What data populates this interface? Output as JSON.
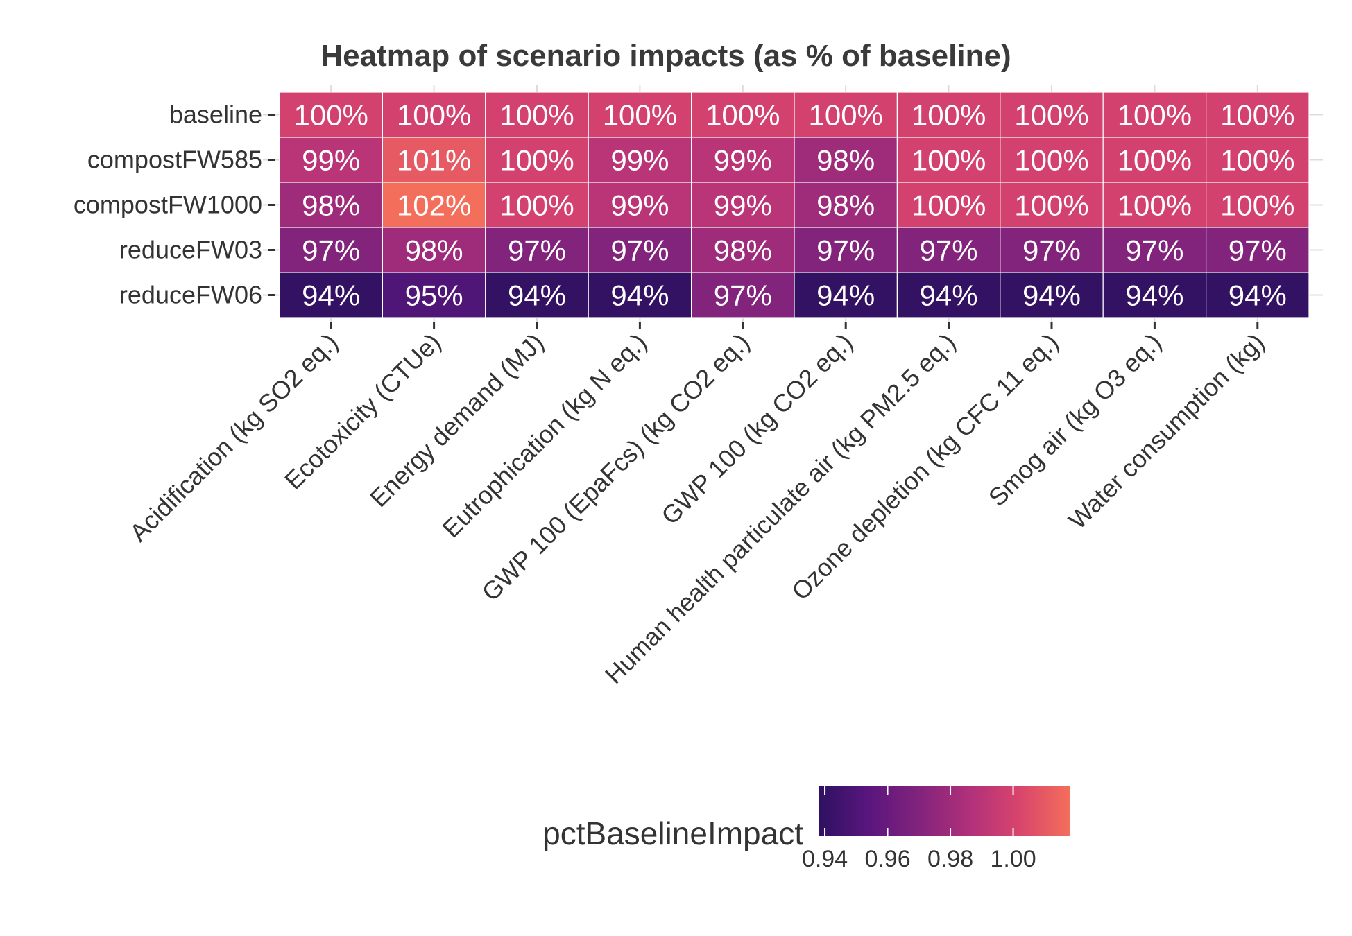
{
  "chart_data": {
    "type": "heatmap",
    "title": "Heatmap of scenario impacts (as % of baseline)",
    "xlabel": "",
    "ylabel": "",
    "x_categories": [
      "Acidification (kg SO2 eq.)",
      "Ecotoxicity (CTUe)",
      "Energy demand (MJ)",
      "Eutrophication (kg N eq.)",
      "GWP 100 (EpaFcs) (kg CO2 eq.)",
      "GWP 100 (kg CO2 eq.)",
      "Human health particulate air (kg PM2.5 eq.)",
      "Ozone depletion (kg CFC 11 eq.)",
      "Smog air (kg O3 eq.)",
      "Water consumption (kg)"
    ],
    "y_categories": [
      "baseline",
      "compostFW585",
      "compostFW1000",
      "reduceFW03",
      "reduceFW06"
    ],
    "values": [
      [
        1.0,
        1.0,
        1.0,
        1.0,
        1.0,
        1.0,
        1.0,
        1.0,
        1.0,
        1.0
      ],
      [
        0.99,
        1.01,
        1.0,
        0.99,
        0.99,
        0.98,
        1.0,
        1.0,
        1.0,
        1.0
      ],
      [
        0.98,
        1.02,
        1.0,
        0.99,
        0.99,
        0.98,
        1.0,
        1.0,
        1.0,
        1.0
      ],
      [
        0.97,
        0.98,
        0.97,
        0.97,
        0.98,
        0.97,
        0.97,
        0.97,
        0.97,
        0.97
      ],
      [
        0.94,
        0.95,
        0.94,
        0.94,
        0.97,
        0.94,
        0.94,
        0.94,
        0.94,
        0.94
      ]
    ],
    "labels": [
      [
        "100%",
        "100%",
        "100%",
        "100%",
        "100%",
        "100%",
        "100%",
        "100%",
        "100%",
        "100%"
      ],
      [
        "99%",
        "101%",
        "100%",
        "99%",
        "99%",
        "98%",
        "100%",
        "100%",
        "100%",
        "100%"
      ],
      [
        "98%",
        "102%",
        "100%",
        "99%",
        "99%",
        "98%",
        "100%",
        "100%",
        "100%",
        "100%"
      ],
      [
        "97%",
        "98%",
        "97%",
        "97%",
        "98%",
        "97%",
        "97%",
        "97%",
        "97%",
        "97%"
      ],
      [
        "94%",
        "95%",
        "94%",
        "94%",
        "97%",
        "94%",
        "94%",
        "94%",
        "94%",
        "94%"
      ]
    ],
    "color_scale": {
      "name": "magma",
      "domain": [
        0.938,
        1.018
      ],
      "stops": [
        "#2d1160",
        "#5a167e",
        "#82237c",
        "#b0307a",
        "#d8456c",
        "#f36e5b"
      ]
    },
    "legend": {
      "title": "pctBaselineImpact",
      "ticks": [
        0.94,
        0.96,
        0.98,
        1.0
      ],
      "tick_labels": [
        "0.94",
        "0.96",
        "0.98",
        "1.00"
      ],
      "position": "bottom"
    },
    "grid": true
  }
}
